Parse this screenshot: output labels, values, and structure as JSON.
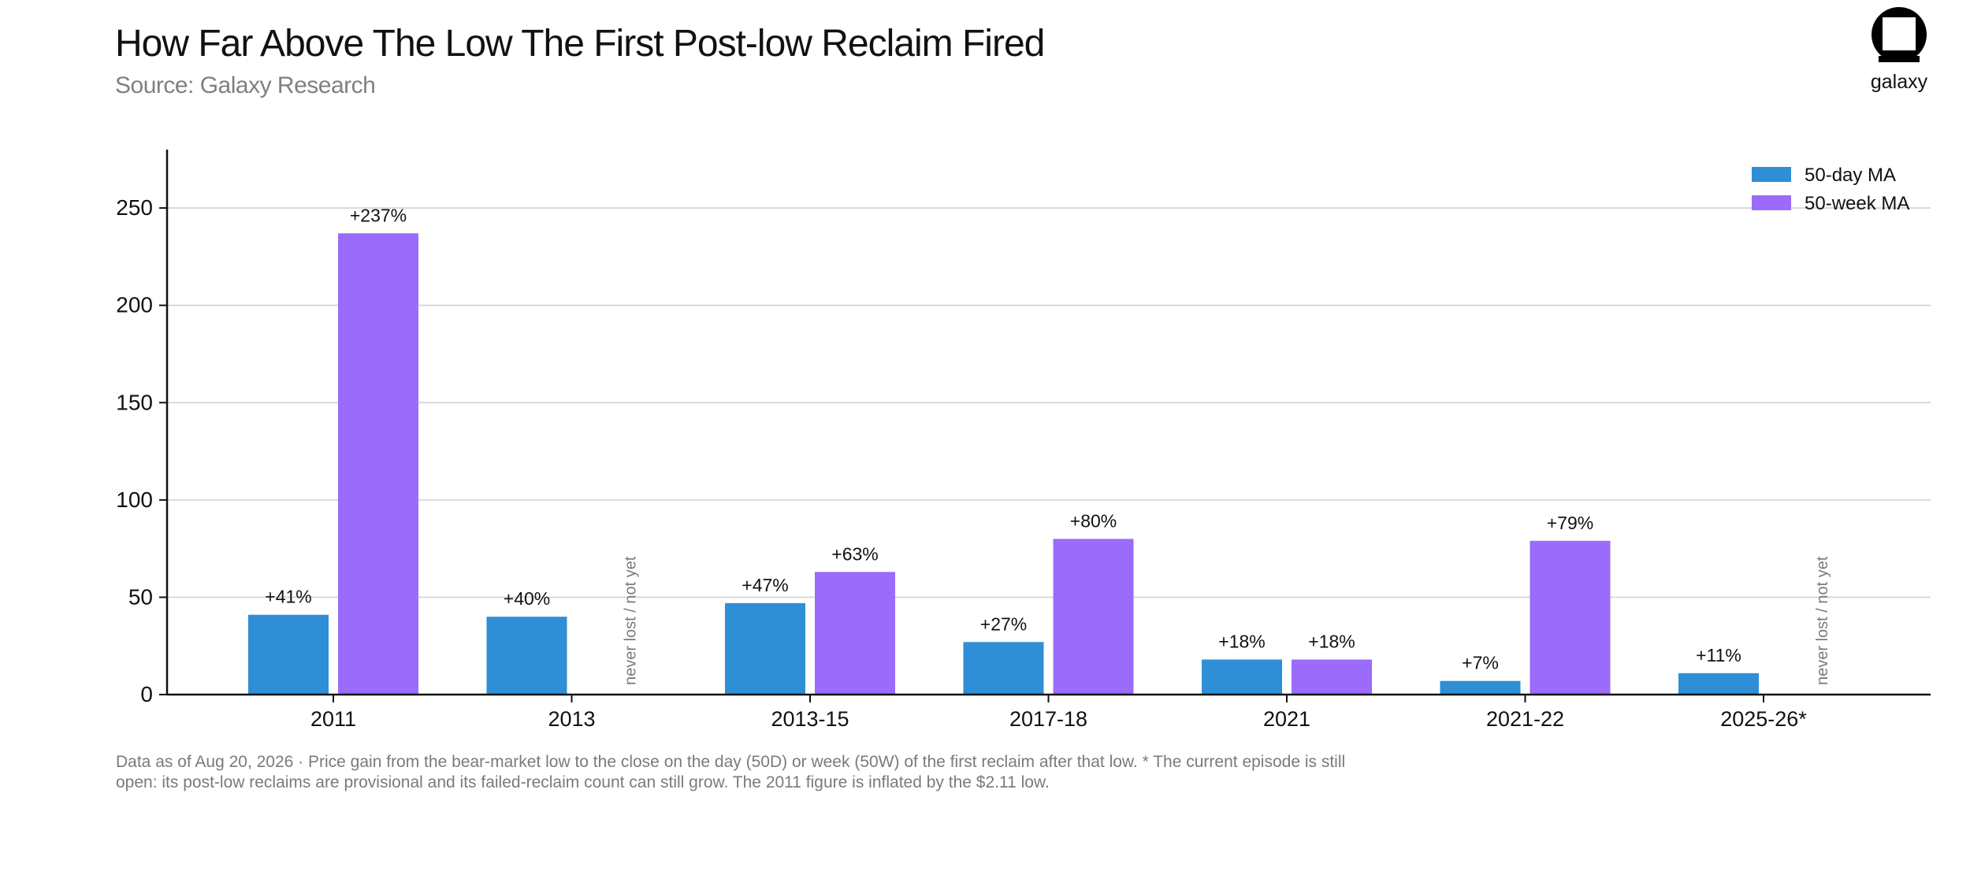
{
  "header": {
    "title": "How Far Above The Low The First Post-low Reclaim Fired",
    "subtitle": "Source: Galaxy Research",
    "logo_text": "galaxy"
  },
  "footnote": {
    "line1": "Data as of Aug 20, 2026 · Price gain from the bear-market low to the close on the day (50D) or week (50W) of the first reclaim after that low. * The current episode is still",
    "line2": "open: its post-low reclaims are provisional and its failed-reclaim count can still grow. The 2011 figure is inflated by the $2.11 low."
  },
  "chart_data": {
    "type": "bar",
    "title": "How Far Above The Low The First Post-low Reclaim Fired",
    "xlabel": "",
    "ylabel": "",
    "ylim": [
      0,
      280
    ],
    "yticks": [
      0,
      50,
      100,
      150,
      200,
      250
    ],
    "grid": true,
    "legend_position": "top-right",
    "categories": [
      "2011",
      "2013",
      "2013-15",
      "2017-18",
      "2021",
      "2021-22",
      "2025-26*"
    ],
    "series": [
      {
        "name": "50-day MA",
        "color": "#2f8fd6",
        "values": [
          41,
          40,
          47,
          27,
          18,
          7,
          11
        ],
        "labels": [
          "+41%",
          "+40%",
          "+47%",
          "+27%",
          "+18%",
          "+7%",
          "+11%"
        ]
      },
      {
        "name": "50-week MA",
        "color": "#9b6bfb",
        "values": [
          237,
          null,
          63,
          80,
          18,
          79,
          null
        ],
        "labels": [
          "+237%",
          null,
          "+63%",
          "+80%",
          "+18%",
          "+79%",
          null
        ]
      }
    ],
    "missing_label": "never lost / not yet"
  }
}
